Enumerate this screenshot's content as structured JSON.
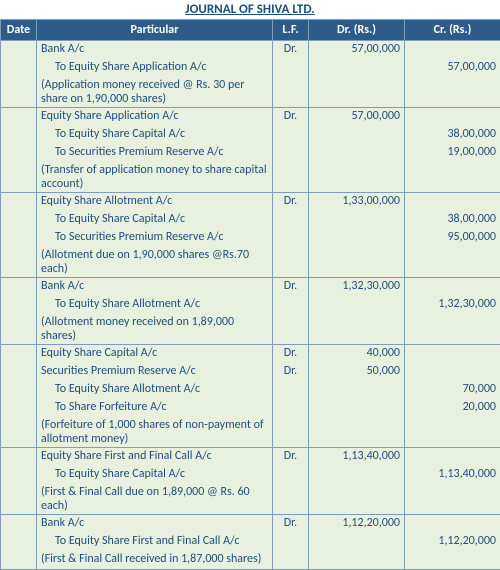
{
  "title": "JOURNAL OF SHIVA LTD.",
  "h": {
    "date": "Date",
    "part": "Particular",
    "lf": "L.F.",
    "dr": "Dr. (Rs.)",
    "cr": "Cr. (Rs.)"
  },
  "r": [
    {
      "p": "Bank A/c",
      "lf": "Dr.",
      "dr": "57,00,000",
      "cls": ""
    },
    {
      "p": "To Equity Share Application A/c",
      "cr": "57,00,000",
      "cls": "ind"
    },
    {
      "p": "(Application money received @ Rs. 30 per share on 1,90,000 shares)",
      "cls": "",
      "sep": 1
    },
    {
      "p": "Equity Share Application A/c",
      "lf": "Dr.",
      "dr": "57,00,000",
      "cls": ""
    },
    {
      "p": "To Equity Share Capital A/c",
      "cr": "38,00,000",
      "cls": "ind"
    },
    {
      "p": "To Securities Premium Reserve A/c",
      "cr": "19,00,000",
      "cls": "ind"
    },
    {
      "p": "(Transfer of application money to share capital account)",
      "cls": "",
      "sep": 1
    },
    {
      "p": "Equity Share Allotment A/c",
      "lf": "Dr.",
      "dr": "1,33,00,000",
      "cls": ""
    },
    {
      "p": "To Equity Share Capital A/c",
      "cr": "38,00,000",
      "cls": "ind"
    },
    {
      "p": "To Securities Premium Reserve A/c",
      "cr": "95,00,000",
      "cls": "ind"
    },
    {
      "p": "(Allotment due on 1,90,000 shares @Rs.70 each)",
      "cls": "",
      "sep": 1
    },
    {
      "p": "Bank A/c",
      "lf": "Dr.",
      "dr": "1,32,30,000",
      "cls": ""
    },
    {
      "p": "To Equity Share Allotment A/c",
      "cr": "1,32,30,000",
      "cls": "ind"
    },
    {
      "p": "(Allotment money received on 1,89,000 shares)",
      "cls": "",
      "sep": 1
    },
    {
      "p": "Equity Share Capital A/c",
      "lf": "Dr.",
      "dr": "40,000",
      "cls": ""
    },
    {
      "p": "Securities Premium Reserve A/c",
      "lf": "Dr.",
      "dr": "50,000",
      "cls": ""
    },
    {
      "p": "To Equity Share Allotment A/c",
      "cr": "70,000",
      "cls": "ind"
    },
    {
      "p": "To Share Forfeiture A/c",
      "cr": "20,000",
      "cls": "ind"
    },
    {
      "p": "(Forfeiture of 1,000 shares of non-payment of allotment money)",
      "cls": "",
      "sep": 1
    },
    {
      "p": "Equity Share First and Final Call A/c",
      "lf": "Dr.",
      "dr": "1,13,40,000",
      "cls": ""
    },
    {
      "p": "To Equity Share Capital A/c",
      "cr": "1,13,40,000",
      "cls": "ind"
    },
    {
      "p": "(First & Final Call due on 1,89,000 @ Rs. 60 each)",
      "cls": "",
      "sep": 1
    },
    {
      "p": "Bank A/c",
      "lf": "Dr.",
      "dr": "1,12,20,000",
      "cls": ""
    },
    {
      "p": "To Equity Share First and Final Call A/c",
      "cr": "1,12,20,000",
      "cls": "ind"
    },
    {
      "p": "(First & Final Call received in 1,87,000 shares)",
      "cls": "",
      "sep": 1,
      "last": 1
    }
  ]
}
